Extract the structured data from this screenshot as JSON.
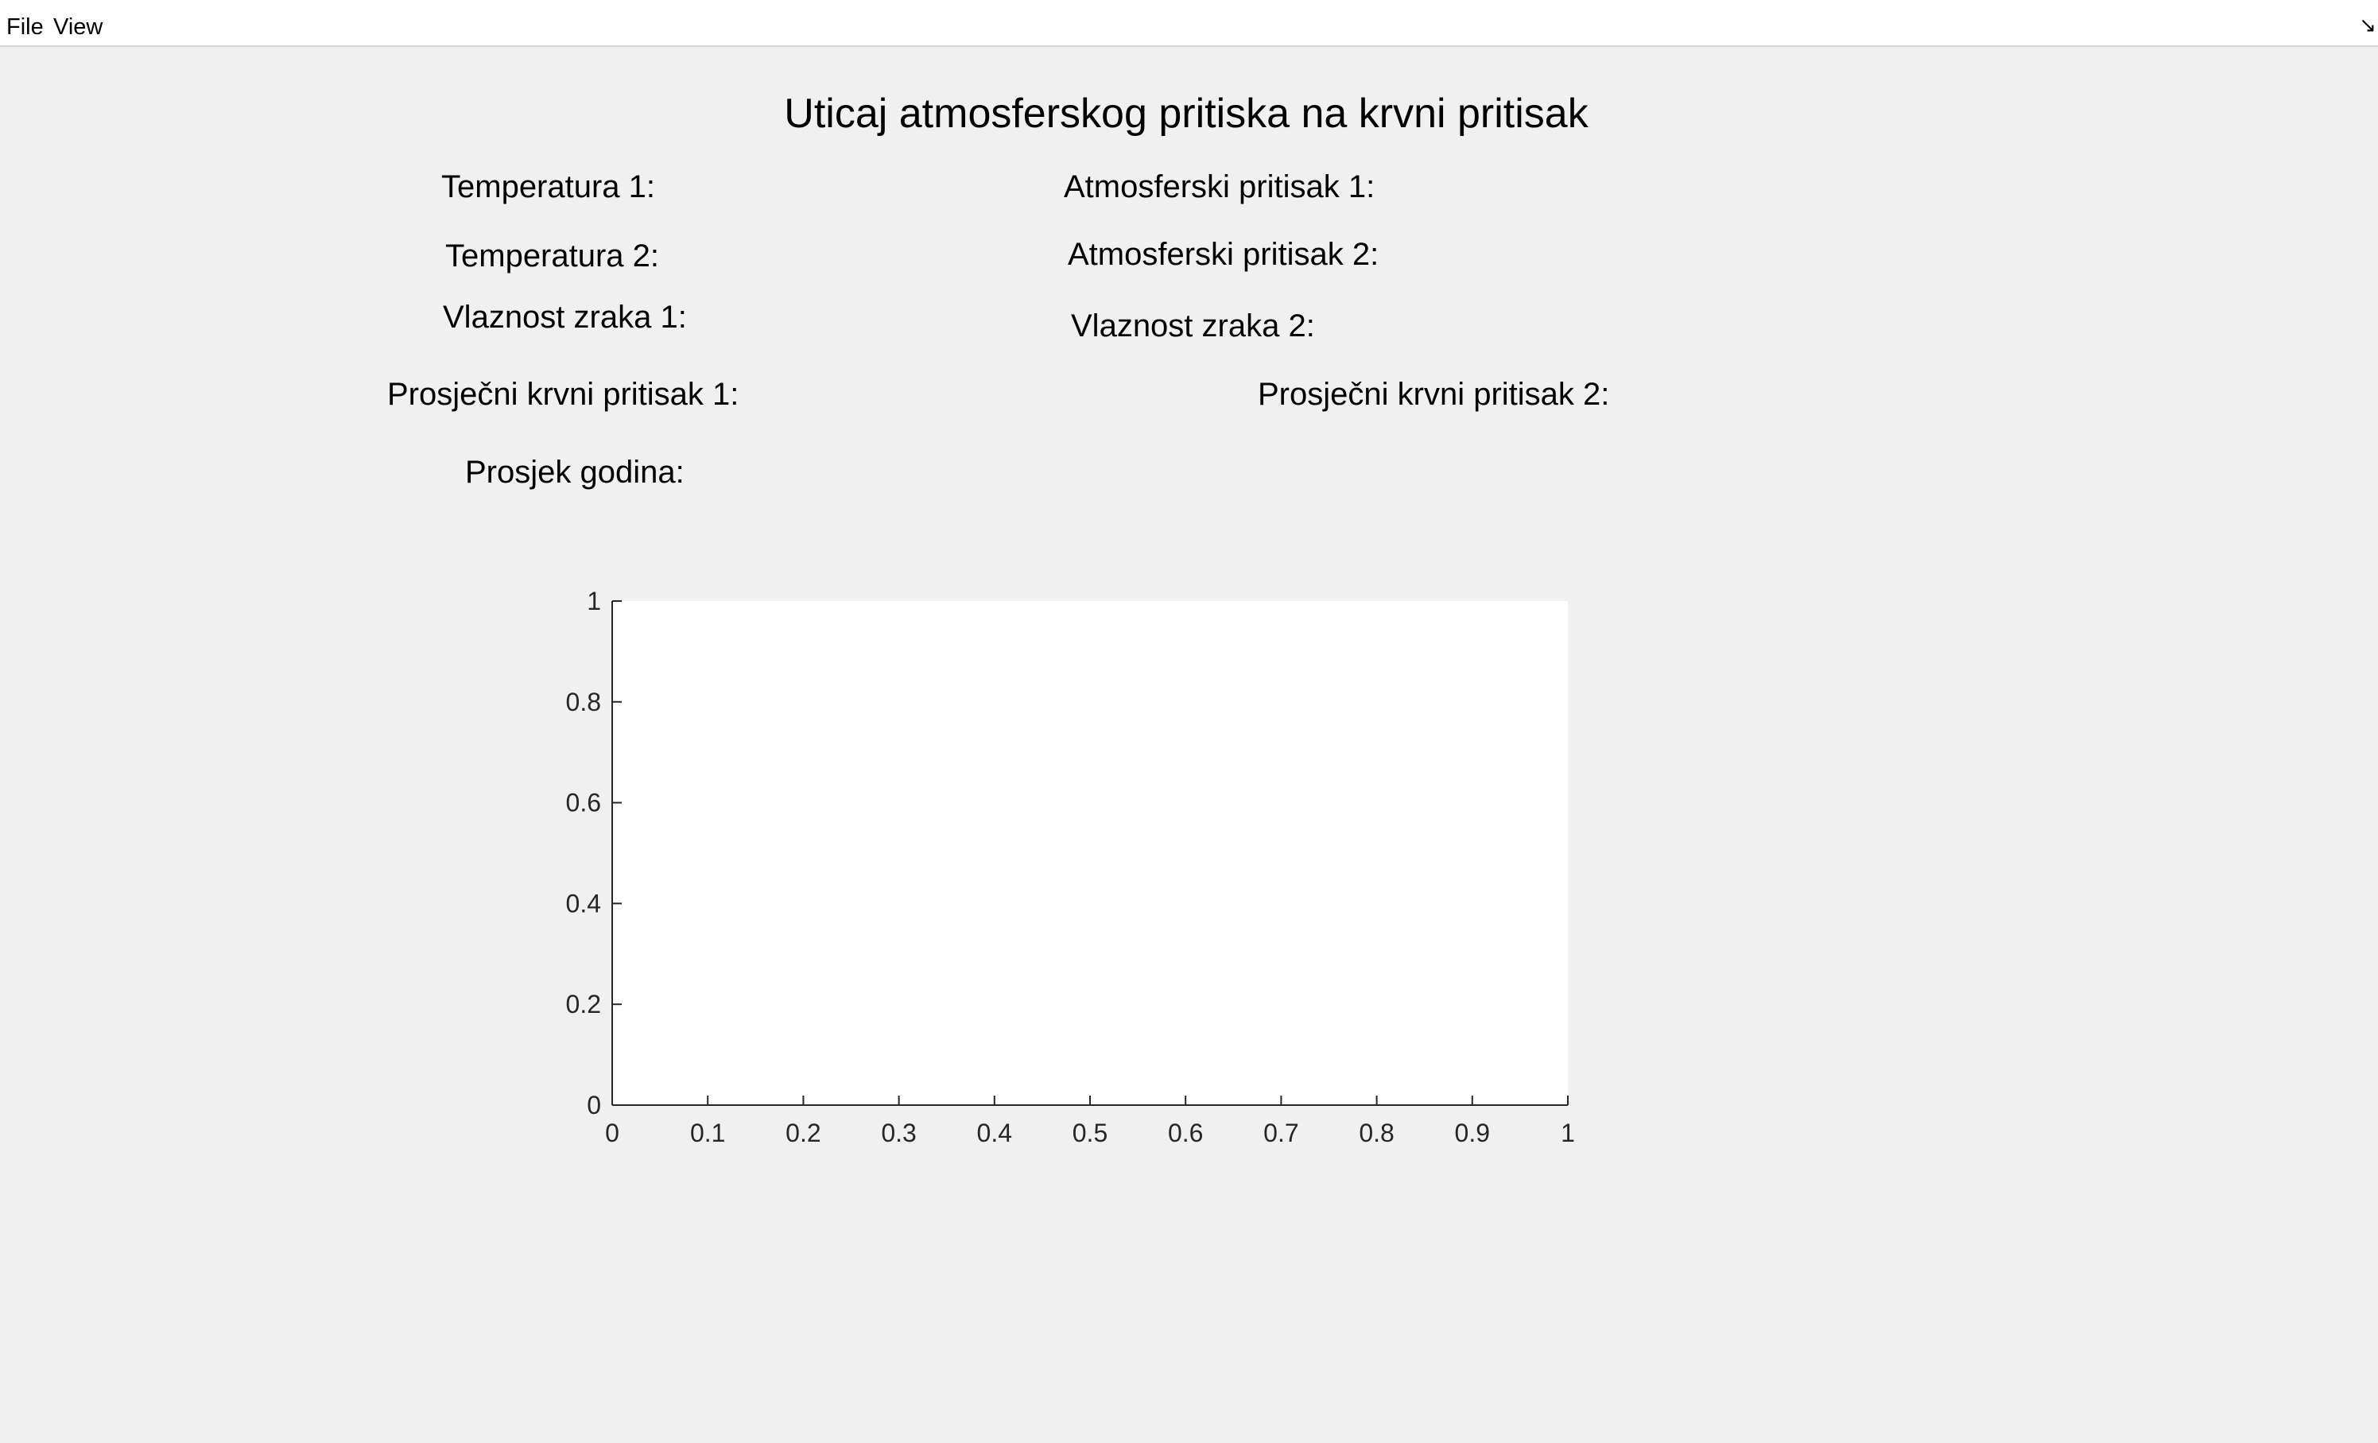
{
  "menubar": {
    "items": [
      {
        "label": "File"
      },
      {
        "label": "View"
      }
    ],
    "dock_icon": "↘"
  },
  "title": "Uticaj atmosferskog pritiska na krvni pritisak",
  "fields": {
    "temperatura_1": "Temperatura 1:",
    "temperatura_2": "Temperatura 2:",
    "vlaznost_1": "Vlaznost zraka 1:",
    "prosjecni_krvni_1": "Prosječni krvni pritisak 1:",
    "prosjek_godina": "Prosjek godina:",
    "atmosferski_1": "Atmosferski pritisak 1:",
    "atmosferski_2": "Atmosferski pritisak 2:",
    "vlaznost_2": "Vlaznost zraka 2:",
    "prosjecni_krvni_2": "Prosječni krvni pritisak 2:"
  },
  "chart_data": {
    "type": "line",
    "title": "",
    "xlabel": "",
    "ylabel": "",
    "xlim": [
      0,
      1
    ],
    "ylim": [
      0,
      1
    ],
    "x_ticks": [
      0,
      0.1,
      0.2,
      0.3,
      0.4,
      0.5,
      0.6,
      0.7,
      0.8,
      0.9,
      1
    ],
    "x_tick_labels": [
      "0",
      "0.1",
      "0.2",
      "0.3",
      "0.4",
      "0.5",
      "0.6",
      "0.7",
      "0.8",
      "0.9",
      "1"
    ],
    "y_ticks": [
      0,
      0.2,
      0.4,
      0.6,
      0.8,
      1
    ],
    "y_tick_labels": [
      "0",
      "0.2",
      "0.4",
      "0.6",
      "0.8",
      "1"
    ],
    "series": [],
    "grid": false,
    "axes_background": "#ffffff",
    "axis_color": "#262626"
  }
}
